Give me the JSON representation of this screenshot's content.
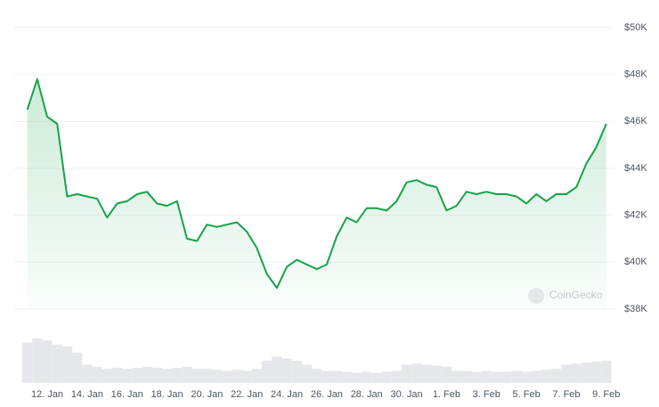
{
  "chart_data": {
    "type": "line",
    "categories": [
      null,
      null,
      "12. Jan",
      null,
      null,
      null,
      "14. Jan",
      null,
      null,
      null,
      "16. Jan",
      null,
      null,
      null,
      "18. Jan",
      null,
      null,
      null,
      "20. Jan",
      null,
      null,
      null,
      "22. Jan",
      null,
      null,
      null,
      "24. Jan",
      null,
      null,
      null,
      "26. Jan",
      null,
      null,
      null,
      "28. Jan",
      null,
      null,
      null,
      "30. Jan",
      null,
      null,
      null,
      "1. Feb",
      null,
      null,
      null,
      "3. Feb",
      null,
      null,
      null,
      "5. Feb",
      null,
      null,
      null,
      "7. Feb",
      null,
      null,
      null,
      "9. Feb"
    ],
    "series": [
      {
        "color": "#16a34a",
        "values": [
          46500,
          47800,
          46200,
          45900,
          42800,
          42900,
          42800,
          42700,
          41900,
          42500,
          42600,
          42900,
          43000,
          42500,
          42400,
          42600,
          41000,
          40900,
          41600,
          41500,
          41600,
          41700,
          41300,
          40600,
          39500,
          38900,
          39800,
          40100,
          39900,
          39700,
          39900,
          41100,
          41900,
          41700,
          42300,
          42300,
          42200,
          42600,
          43400,
          43500,
          43300,
          43200,
          42200,
          42400,
          43000,
          42900,
          43000,
          42900,
          42900,
          42800,
          42500,
          42900,
          42600,
          42900,
          42900,
          43200,
          44200,
          44900,
          45900
        ]
      },
      {
        "color": "#e5e7eb",
        "values": [
          40,
          44,
          42,
          38,
          36,
          30,
          18,
          16,
          14,
          15,
          14,
          15,
          16,
          15,
          14,
          15,
          16,
          14,
          14,
          13,
          12,
          13,
          12,
          14,
          22,
          26,
          24,
          22,
          18,
          14,
          12,
          12,
          11,
          10,
          11,
          10,
          11,
          12,
          18,
          19,
          18,
          17,
          16,
          12,
          12,
          11,
          12,
          11,
          11,
          12,
          11,
          12,
          13,
          14,
          18,
          19,
          20,
          21,
          22
        ]
      }
    ],
    "ylim": [
      37000,
      51000
    ],
    "yticks": [
      {
        "value": 38000,
        "label": "$38K"
      },
      {
        "value": 40000,
        "label": "$40K"
      },
      {
        "value": 42000,
        "label": "$42K"
      },
      {
        "value": 44000,
        "label": "$44K"
      },
      {
        "value": 46000,
        "label": "$46K"
      },
      {
        "value": 48000,
        "label": "$48K"
      },
      {
        "value": 50000,
        "label": "$50K"
      }
    ],
    "grid": true,
    "watermark": "CoinGecko"
  }
}
